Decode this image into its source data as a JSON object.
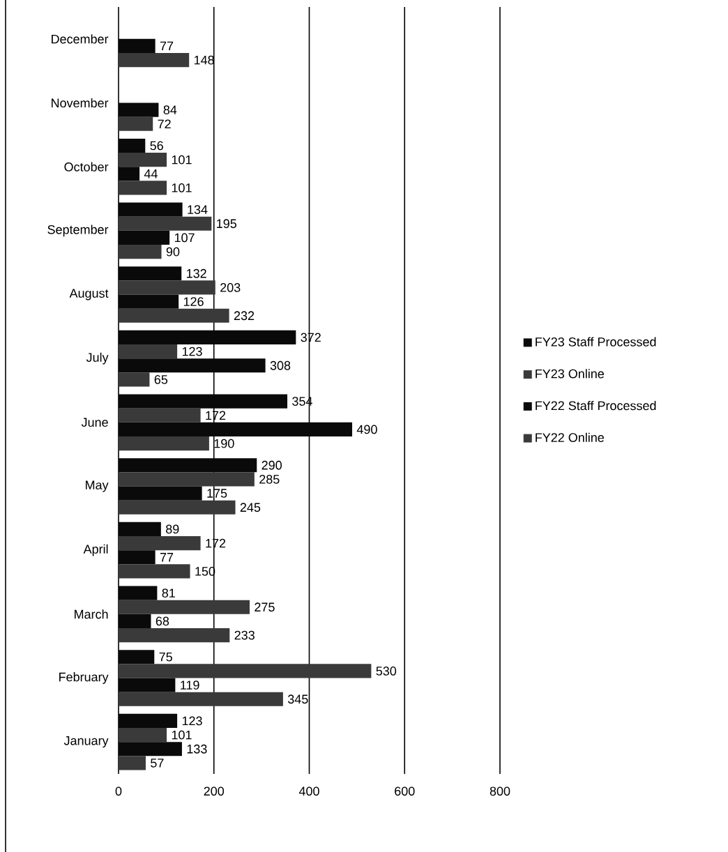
{
  "chart_data": {
    "type": "bar",
    "orientation": "horizontal",
    "categories": [
      "December",
      "November",
      "October",
      "September",
      "August",
      "July",
      "June",
      "May",
      "April",
      "March",
      "February",
      "January"
    ],
    "series": [
      {
        "name": "FY23 Staff Processed",
        "color": "#0a0a0a",
        "values": [
          null,
          null,
          56,
          134,
          132,
          372,
          354,
          290,
          89,
          81,
          75,
          123
        ]
      },
      {
        "name": "FY23 Online",
        "color": "#3a3a3a",
        "values": [
          null,
          null,
          101,
          195,
          203,
          123,
          172,
          285,
          172,
          275,
          530,
          101
        ]
      },
      {
        "name": "FY22 Staff Processed",
        "color": "#0a0a0a",
        "values": [
          77,
          84,
          44,
          107,
          126,
          308,
          490,
          175,
          77,
          68,
          119,
          133
        ]
      },
      {
        "name": "FY22 Online",
        "color": "#3a3a3a",
        "values": [
          148,
          72,
          101,
          90,
          232,
          65,
          190,
          245,
          150,
          233,
          345,
          57
        ]
      }
    ],
    "xlim": [
      0,
      800
    ],
    "xticks": [
      0,
      200,
      400,
      600,
      800
    ],
    "grid": "x",
    "legend": "right",
    "data_labels": true
  }
}
